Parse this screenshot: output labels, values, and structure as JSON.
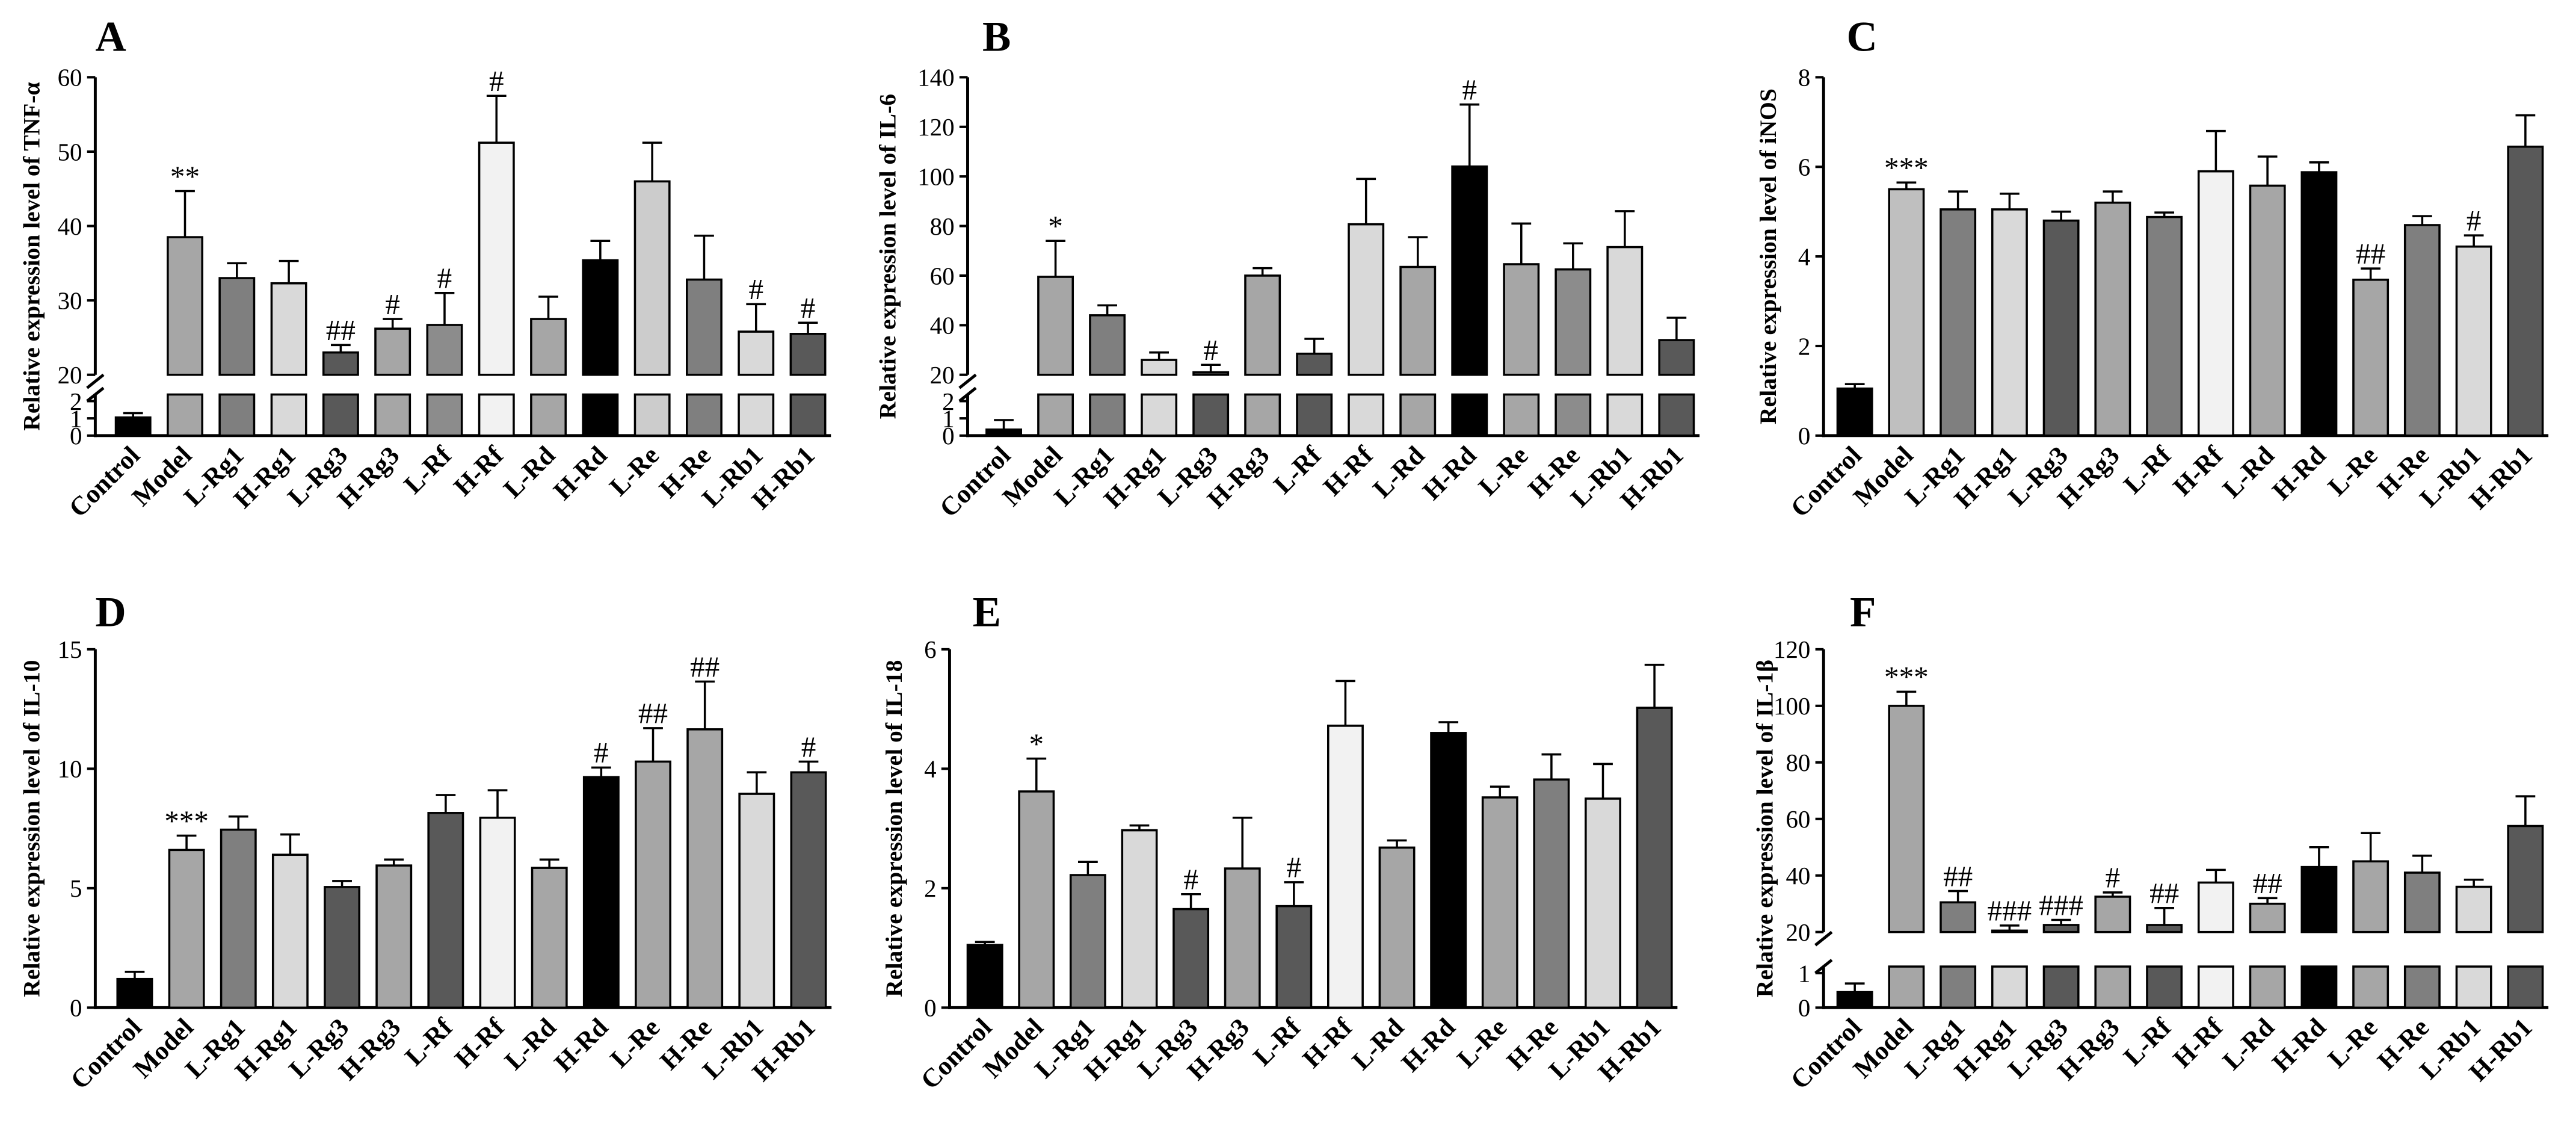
{
  "chart_data": [
    {
      "panel": "A",
      "type": "bar",
      "title": "",
      "xlabel": "",
      "ylabel": "Relative expression level of TNF-α",
      "categories": [
        "Control",
        "Model",
        "L-Rg1",
        "H-Rg1",
        "L-Rg3",
        "H-Rg3",
        "L-Rf",
        "H-Rf",
        "L-Rd",
        "H-Rd",
        "L-Re",
        "H-Re",
        "L-Rb1",
        "H-Rb1"
      ],
      "values": [
        1.05,
        38.5,
        33.0,
        32.3,
        23.0,
        26.2,
        26.7,
        51.2,
        27.5,
        35.4,
        46.0,
        32.8,
        25.8,
        25.5
      ],
      "errors": [
        0.25,
        6.2,
        2.0,
        3.0,
        1.0,
        1.3,
        4.3,
        6.3,
        3.0,
        2.6,
        5.2,
        5.9,
        3.7,
        1.5
      ],
      "significance": [
        "",
        "**",
        "",
        "",
        "##",
        "#",
        "#",
        "#",
        "",
        "",
        "",
        "",
        "#",
        "#"
      ],
      "y_segments": [
        {
          "range": [
            0,
            2
          ],
          "ticks": [
            0,
            1,
            2
          ]
        },
        {
          "range": [
            20,
            60
          ],
          "ticks": [
            20,
            30,
            40,
            50,
            60
          ]
        }
      ],
      "colors": [
        "#000000",
        "#a6a6a6",
        "#7f7f7f",
        "#d9d9d9",
        "#595959",
        "#a6a6a6",
        "#8c8c8c",
        "#f2f2f2",
        "#a6a6a6",
        "#000000",
        "#cccccc",
        "#7f7f7f",
        "#d9d9d9",
        "#595959"
      ]
    },
    {
      "panel": "B",
      "type": "bar",
      "title": "",
      "xlabel": "",
      "ylabel": "Relative expression level of IL-6",
      "categories": [
        "Control",
        "Model",
        "L-Rg1",
        "H-Rg1",
        "L-Rg3",
        "H-Rg3",
        "L-Rf",
        "H-Rf",
        "L-Rd",
        "H-Rd",
        "L-Re",
        "H-Re",
        "L-Rb1",
        "H-Rb1"
      ],
      "values": [
        0.35,
        59.5,
        44.0,
        26.0,
        21.0,
        60.0,
        28.5,
        80.7,
        63.5,
        104.0,
        64.6,
        62.5,
        71.5,
        34.0
      ],
      "errors": [
        0.55,
        14.5,
        4.0,
        3.0,
        3.0,
        3.0,
        6.0,
        18.3,
        12.0,
        25.0,
        16.4,
        10.5,
        14.5,
        9.0
      ],
      "significance": [
        "",
        "*",
        "",
        "",
        "#",
        "",
        "",
        "",
        "",
        "#",
        "",
        "",
        "",
        ""
      ],
      "y_segments": [
        {
          "range": [
            0,
            2
          ],
          "ticks": [
            0,
            1,
            2
          ]
        },
        {
          "range": [
            20,
            140
          ],
          "ticks": [
            20,
            40,
            60,
            80,
            100,
            120,
            140
          ]
        }
      ],
      "colors": [
        "#000000",
        "#a6a6a6",
        "#7f7f7f",
        "#d9d9d9",
        "#595959",
        "#a6a6a6",
        "#595959",
        "#d9d9d9",
        "#a6a6a6",
        "#000000",
        "#a6a6a6",
        "#8c8c8c",
        "#d9d9d9",
        "#595959"
      ]
    },
    {
      "panel": "C",
      "type": "bar",
      "title": "",
      "xlabel": "",
      "ylabel": "Relative expression level of iNOS",
      "categories": [
        "Control",
        "Model",
        "L-Rg1",
        "H-Rg1",
        "L-Rg3",
        "H-Rg3",
        "L-Rf",
        "H-Rf",
        "L-Rd",
        "H-Rd",
        "L-Re",
        "H-Re",
        "L-Rb1",
        "H-Rb1"
      ],
      "values": [
        1.05,
        5.5,
        5.05,
        5.05,
        4.8,
        5.2,
        4.88,
        5.9,
        5.58,
        5.88,
        3.48,
        4.7,
        4.22,
        6.45
      ],
      "errors": [
        0.1,
        0.15,
        0.4,
        0.35,
        0.2,
        0.25,
        0.1,
        0.9,
        0.65,
        0.22,
        0.25,
        0.2,
        0.25,
        0.7
      ],
      "significance": [
        "",
        "***",
        "",
        "",
        "",
        "",
        "",
        "",
        "",
        "",
        "##",
        "",
        "#",
        ""
      ],
      "y_segments": [
        {
          "range": [
            0,
            8
          ],
          "ticks": [
            0,
            2,
            4,
            6,
            8
          ]
        }
      ],
      "colors": [
        "#000000",
        "#bfbfbf",
        "#7f7f7f",
        "#d9d9d9",
        "#595959",
        "#a6a6a6",
        "#7f7f7f",
        "#f2f2f2",
        "#a6a6a6",
        "#000000",
        "#a6a6a6",
        "#7f7f7f",
        "#d9d9d9",
        "#595959"
      ]
    },
    {
      "panel": "D",
      "type": "bar",
      "title": "",
      "xlabel": "",
      "ylabel": "Relative expression level of IL-10",
      "categories": [
        "Control",
        "Model",
        "L-Rg1",
        "H-Rg1",
        "L-Rg3",
        "H-Rg3",
        "L-Rf",
        "H-Rf",
        "L-Rd",
        "H-Rd",
        "L-Re",
        "H-Re",
        "L-Rb1",
        "H-Rb1"
      ],
      "values": [
        1.2,
        6.6,
        7.45,
        6.4,
        5.05,
        5.95,
        8.15,
        7.95,
        5.85,
        9.65,
        10.3,
        11.65,
        8.95,
        9.85
      ],
      "errors": [
        0.3,
        0.6,
        0.55,
        0.85,
        0.25,
        0.25,
        0.75,
        1.15,
        0.35,
        0.4,
        1.4,
        2.0,
        0.9,
        0.45
      ],
      "significance": [
        "",
        "***",
        "",
        "",
        "",
        "",
        "",
        "",
        "",
        "#",
        "##",
        "##",
        "",
        "#"
      ],
      "y_segments": [
        {
          "range": [
            0,
            15
          ],
          "ticks": [
            0,
            5,
            10,
            15
          ]
        }
      ],
      "colors": [
        "#000000",
        "#a6a6a6",
        "#7f7f7f",
        "#d9d9d9",
        "#595959",
        "#a6a6a6",
        "#595959",
        "#f2f2f2",
        "#a6a6a6",
        "#000000",
        "#a6a6a6",
        "#a6a6a6",
        "#d9d9d9",
        "#595959"
      ]
    },
    {
      "panel": "E",
      "type": "bar",
      "title": "",
      "xlabel": "",
      "ylabel": "Relative expression level of IL-18",
      "categories": [
        "Control",
        "Model",
        "L-Rg1",
        "H-Rg1",
        "L-Rg3",
        "H-Rg3",
        "L-Rf",
        "H-Rf",
        "L-Rd",
        "H-Rd",
        "L-Re",
        "H-Re",
        "L-Rb1",
        "H-Rb1"
      ],
      "values": [
        1.05,
        3.62,
        2.22,
        2.97,
        1.65,
        2.33,
        1.7,
        4.72,
        2.68,
        4.6,
        3.52,
        3.82,
        3.5,
        5.02
      ],
      "errors": [
        0.05,
        0.55,
        0.22,
        0.08,
        0.25,
        0.85,
        0.4,
        0.75,
        0.12,
        0.18,
        0.18,
        0.42,
        0.58,
        0.72
      ],
      "significance": [
        "",
        "*",
        "",
        "",
        "#",
        "",
        "#",
        "",
        "",
        "",
        "",
        "",
        "",
        ""
      ],
      "y_segments": [
        {
          "range": [
            0,
            6
          ],
          "ticks": [
            0,
            2,
            4,
            6
          ]
        }
      ],
      "colors": [
        "#000000",
        "#a6a6a6",
        "#7f7f7f",
        "#d9d9d9",
        "#595959",
        "#a6a6a6",
        "#595959",
        "#f2f2f2",
        "#a6a6a6",
        "#000000",
        "#a6a6a6",
        "#7f7f7f",
        "#d9d9d9",
        "#595959"
      ]
    },
    {
      "panel": "F",
      "type": "bar",
      "title": "",
      "xlabel": "",
      "ylabel": "Relative expression level of IL-1β",
      "categories": [
        "Control",
        "Model",
        "L-Rg1",
        "H-Rg1",
        "L-Rg3",
        "H-Rg3",
        "L-Rf",
        "H-Rf",
        "L-Rd",
        "H-Rd",
        "L-Re",
        "H-Re",
        "L-Rb1",
        "H-Rb1"
      ],
      "values": [
        0.45,
        100.0,
        30.5,
        20.5,
        22.5,
        32.5,
        22.5,
        37.5,
        30.0,
        43.0,
        45.0,
        41.0,
        36.0,
        57.5
      ],
      "errors": [
        0.25,
        5.0,
        4.0,
        1.8,
        1.8,
        1.5,
        6.0,
        4.5,
        2.0,
        7.0,
        10.0,
        6.0,
        2.5,
        10.5
      ],
      "significance": [
        "",
        "***",
        "##",
        "###",
        "###",
        "#",
        "##",
        "",
        "##",
        "",
        "",
        "",
        "",
        ""
      ],
      "y_segments": [
        {
          "range": [
            0,
            1
          ],
          "ticks": [
            0,
            1
          ]
        },
        {
          "range": [
            20,
            120
          ],
          "ticks": [
            20,
            40,
            60,
            80,
            100,
            120
          ]
        }
      ],
      "colors": [
        "#000000",
        "#a6a6a6",
        "#7f7f7f",
        "#d9d9d9",
        "#595959",
        "#a6a6a6",
        "#595959",
        "#f2f2f2",
        "#a6a6a6",
        "#000000",
        "#a6a6a6",
        "#7f7f7f",
        "#d9d9d9",
        "#595959"
      ]
    }
  ]
}
